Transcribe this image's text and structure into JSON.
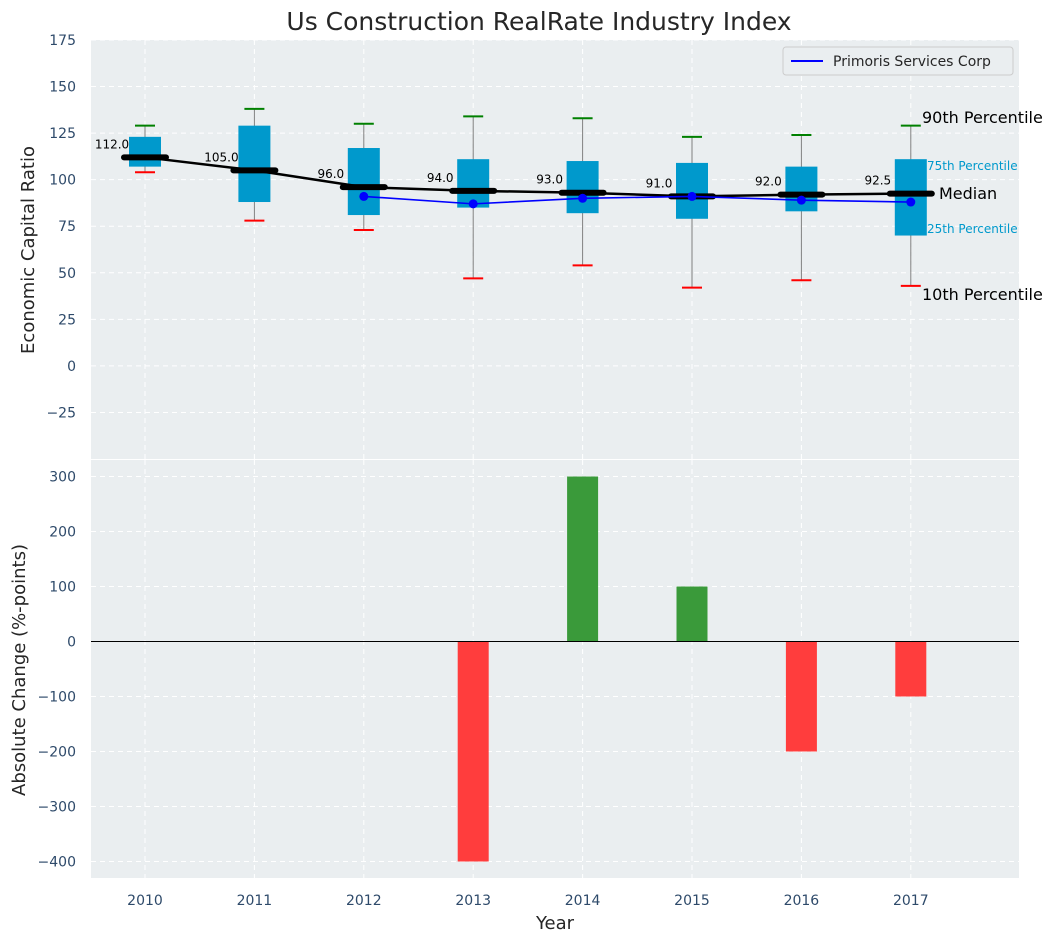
{
  "chart_data": [
    {
      "type": "box",
      "title": "Us Construction RealRate Industry Index",
      "ylabel": "Economic Capital Ratio",
      "ylim": [
        -50,
        175
      ],
      "yticks": [
        -25,
        0,
        25,
        50,
        75,
        100,
        125,
        150,
        175
      ],
      "categories": [
        "2010",
        "2011",
        "2012",
        "2013",
        "2014",
        "2015",
        "2016",
        "2017"
      ],
      "p10": [
        104,
        78,
        73,
        47,
        54,
        42,
        46,
        43
      ],
      "p25": [
        107,
        88,
        81,
        85,
        82,
        79,
        83,
        70
      ],
      "median": [
        112.0,
        105.0,
        96.0,
        94.0,
        93.0,
        91.0,
        92.0,
        92.5
      ],
      "median_labels": [
        "112.0",
        "105.0",
        "96.0",
        "94.0",
        "93.0",
        "91.0",
        "92.0",
        "92.5"
      ],
      "p75": [
        123,
        129,
        117,
        111,
        110,
        109,
        107,
        111
      ],
      "p90": [
        129,
        138,
        130,
        134,
        133,
        123,
        124,
        129
      ],
      "company_series": {
        "name": "Primoris Services Corp",
        "values": [
          null,
          null,
          91,
          87,
          90,
          91,
          89,
          88
        ],
        "color": "#0000ff"
      },
      "annotations": {
        "p90": "90th Percentile",
        "p75": "75th Percentile",
        "median": "Median",
        "p25": "25th Percentile",
        "p10": "10th Percentile"
      },
      "legend": {
        "entries": [
          "Primoris Services Corp"
        ],
        "placement": "top-right"
      },
      "colors": {
        "box": "#0099cc",
        "median_line": "#000000",
        "p90_cap": "#008000",
        "p10_cap": "#ff0000",
        "whisker": "#808080"
      }
    },
    {
      "type": "bar",
      "ylabel": "Absolute Change (%-points)",
      "xlabel": "Year",
      "ylim": [
        -430,
        330
      ],
      "yticks": [
        -400,
        -300,
        -200,
        -100,
        0,
        100,
        200,
        300
      ],
      "categories": [
        "2010",
        "2011",
        "2012",
        "2013",
        "2014",
        "2015",
        "2016",
        "2017"
      ],
      "values": [
        0,
        0,
        0,
        -400,
        300,
        100,
        -200,
        -100
      ],
      "colors": {
        "positive": "#3a9a3a",
        "negative": "#ff3d3d"
      }
    }
  ]
}
